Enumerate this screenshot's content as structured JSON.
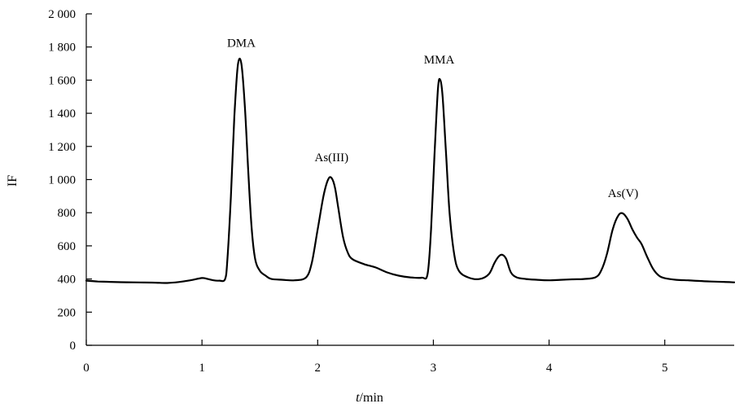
{
  "chart_data": {
    "type": "line",
    "xlabel": {
      "italic": "t",
      "rest": "/min"
    },
    "ylabel": "IF",
    "xlim": [
      0,
      5.6
    ],
    "ylim": [
      0,
      2000
    ],
    "x_ticks": [
      0,
      1,
      2,
      3,
      4,
      5
    ],
    "x_tick_labels": [
      "0",
      "1",
      "2",
      "3",
      "4",
      "5"
    ],
    "y_ticks": [
      0,
      200,
      400,
      600,
      800,
      1000,
      1200,
      1400,
      1600,
      1800,
      2000
    ],
    "y_tick_labels": [
      "0",
      "200",
      "400",
      "600",
      "800",
      "1 000",
      "1 200",
      "1 400",
      "1 600",
      "1 800",
      "2 000"
    ],
    "grid": false,
    "legend": "none",
    "line_color": "#000000",
    "series": [
      {
        "x": [
          0,
          0.1,
          0.2,
          0.3,
          0.4,
          0.5,
          0.6,
          0.7,
          0.8,
          0.9,
          1.0,
          1.05,
          1.1,
          1.15,
          1.2,
          1.22,
          1.25,
          1.28,
          1.31,
          1.34,
          1.37,
          1.4,
          1.43,
          1.46,
          1.5,
          1.55,
          1.6,
          1.7,
          1.8,
          1.9,
          1.95,
          2.0,
          2.05,
          2.09,
          2.12,
          2.15,
          2.18,
          2.22,
          2.26,
          2.3,
          2.4,
          2.5,
          2.6,
          2.7,
          2.8,
          2.9,
          2.95,
          2.98,
          3.01,
          3.04,
          3.06,
          3.08,
          3.11,
          3.14,
          3.18,
          3.22,
          3.3,
          3.4,
          3.48,
          3.53,
          3.57,
          3.6,
          3.63,
          3.67,
          3.72,
          3.8,
          3.9,
          4.0,
          4.1,
          4.2,
          4.3,
          4.4,
          4.45,
          4.5,
          4.55,
          4.6,
          4.64,
          4.68,
          4.72,
          4.76,
          4.8,
          4.85,
          4.9,
          4.95,
          5.0,
          5.1,
          5.2,
          5.3,
          5.4,
          5.5,
          5.6
        ],
        "y": [
          390,
          385,
          383,
          381,
          380,
          379,
          378,
          376,
          382,
          392,
          406,
          400,
          392,
          390,
          400,
          520,
          900,
          1380,
          1690,
          1700,
          1450,
          1050,
          700,
          520,
          450,
          420,
          400,
          395,
          392,
          410,
          500,
          700,
          900,
          1000,
          1010,
          950,
          820,
          650,
          560,
          520,
          490,
          470,
          440,
          420,
          410,
          408,
          430,
          700,
          1150,
          1550,
          1600,
          1500,
          1150,
          800,
          550,
          450,
          410,
          400,
          430,
          500,
          540,
          545,
          520,
          440,
          410,
          400,
          395,
          392,
          395,
          398,
          400,
          410,
          450,
          550,
          700,
          785,
          795,
          760,
          700,
          650,
          610,
          530,
          460,
          420,
          405,
          395,
          392,
          388,
          385,
          383,
          380
        ]
      }
    ],
    "annotations": [
      {
        "text": "DMA",
        "x": 1.34,
        "y": 1800
      },
      {
        "text": "As(III)",
        "x": 2.12,
        "y": 1110
      },
      {
        "text": "MMA",
        "x": 3.05,
        "y": 1700
      },
      {
        "text": "As(V)",
        "x": 4.64,
        "y": 895
      }
    ]
  }
}
